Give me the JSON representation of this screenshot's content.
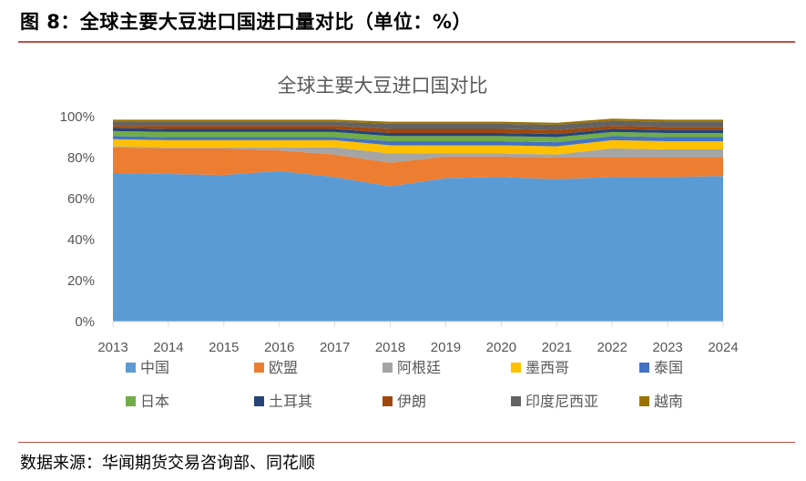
{
  "header": {
    "title": "图 8：全球主要大豆进口国进口量对比（单位：%）",
    "source": "数据来源：华闻期货交易咨询部、同花顺"
  },
  "chart_data": {
    "type": "area",
    "stacked": "percent",
    "title": "全球主要大豆进口国对比",
    "xlabel": "",
    "ylabel": "",
    "ylim": [
      0,
      100
    ],
    "yticks": [
      "0%",
      "20%",
      "40%",
      "60%",
      "80%",
      "100%"
    ],
    "ytick_values": [
      0,
      20,
      40,
      60,
      80,
      100
    ],
    "categories": [
      "2013",
      "2014",
      "2015",
      "2016",
      "2017",
      "2018",
      "2019",
      "2020",
      "2021",
      "2022",
      "2023",
      "2024"
    ],
    "legend_position": "bottom",
    "series": [
      {
        "name": "中国",
        "color": "#5b9bd5",
        "values": [
          72.5,
          72,
          71.5,
          73.5,
          70.5,
          66,
          70,
          70.5,
          69.5,
          70.5,
          70.5,
          71
        ]
      },
      {
        "name": "欧盟",
        "color": "#ed7d31",
        "values": [
          12.5,
          12.5,
          13,
          10,
          11,
          11.5,
          10.5,
          10,
          10.5,
          9.5,
          9.5,
          9
        ]
      },
      {
        "name": "阿根廷",
        "color": "#a5a5a5",
        "values": [
          0.5,
          0.5,
          0.5,
          1.5,
          3.5,
          4.5,
          1.5,
          1.5,
          1.5,
          4.5,
          4,
          4
        ]
      },
      {
        "name": "墨西哥",
        "color": "#ffc000",
        "values": [
          3.5,
          3.5,
          3.5,
          3.5,
          3.5,
          4,
          4,
          4,
          4,
          4,
          4,
          4
        ]
      },
      {
        "name": "泰国",
        "color": "#4472c4",
        "values": [
          1.5,
          1.5,
          1.5,
          1.5,
          1.5,
          2,
          2,
          2,
          2,
          2,
          2,
          2
        ]
      },
      {
        "name": "日本",
        "color": "#70ad47",
        "values": [
          2.5,
          2.5,
          2.5,
          2.5,
          2.5,
          2.5,
          2.5,
          2.5,
          2.5,
          2,
          2,
          2
        ]
      },
      {
        "name": "土耳其",
        "color": "#264478",
        "values": [
          1.5,
          1.5,
          1.5,
          1.5,
          1.5,
          1.5,
          1.5,
          1.5,
          1.5,
          1.5,
          1.5,
          1.5
        ]
      },
      {
        "name": "伊朗",
        "color": "#9e480e",
        "values": [
          1,
          1.5,
          1.5,
          1.5,
          1.5,
          2,
          2,
          2,
          2,
          1.5,
          1.5,
          1.5
        ]
      },
      {
        "name": "印度尼西亚",
        "color": "#636363",
        "values": [
          2,
          2,
          2,
          2,
          2,
          2.5,
          2.5,
          2.5,
          2.5,
          2.5,
          2.5,
          2.5
        ]
      },
      {
        "name": "越南",
        "color": "#997300",
        "values": [
          1,
          1,
          1,
          1,
          1,
          1,
          1,
          1,
          1,
          1,
          1,
          1
        ]
      }
    ]
  }
}
